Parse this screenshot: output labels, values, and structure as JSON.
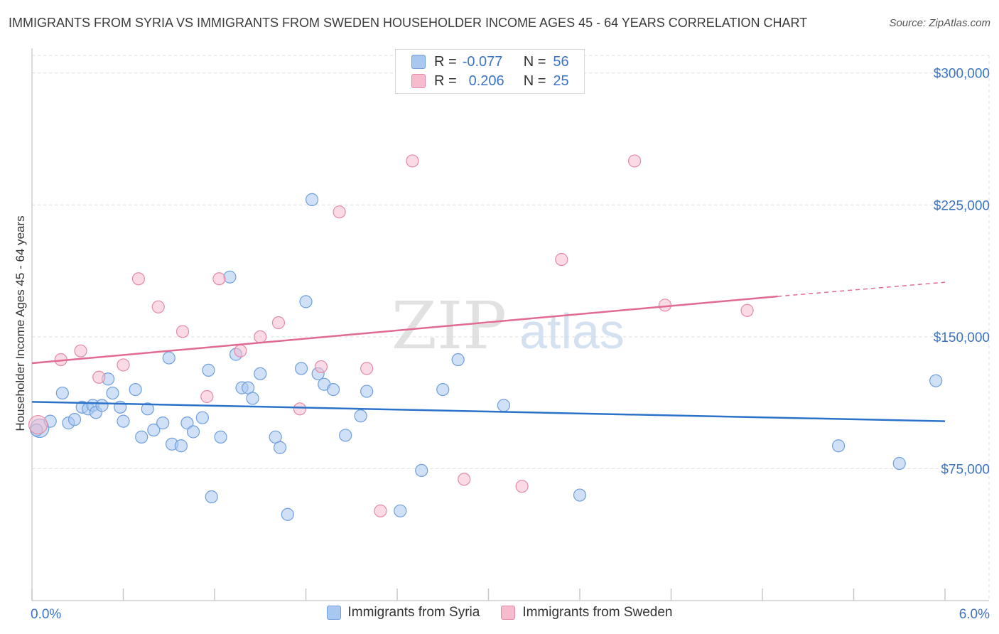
{
  "title": "IMMIGRANTS FROM SYRIA VS IMMIGRANTS FROM SWEDEN HOUSEHOLDER INCOME AGES 45 - 64 YEARS CORRELATION CHART",
  "source": "Source: ZipAtlas.com",
  "watermark": {
    "zip": "ZIP",
    "atlas": "atlas"
  },
  "legend": {
    "rows": [
      {
        "r_label": "R =",
        "r_value": "-0.077",
        "n_label": "N =",
        "n_value": "56"
      },
      {
        "r_label": "R =",
        "r_value": "0.206",
        "n_label": "N =",
        "n_value": "25"
      }
    ]
  },
  "colors": {
    "syria_fill": "#a9c8f0",
    "syria_stroke": "#6f9fdc",
    "syria_line": "#2b72c9",
    "sweden_fill": "#f6bccd",
    "sweden_stroke": "#e48aa6",
    "sweden_line": "#e06a92",
    "tick_label": "#3b74c4",
    "grid": "#dddddd"
  },
  "chart_data": {
    "type": "scatter",
    "title": "IMMIGRANTS FROM SYRIA VS IMMIGRANTS FROM SWEDEN HOUSEHOLDER INCOME AGES 45 - 64 YEARS CORRELATION CHART",
    "xlabel": "",
    "ylabel": "Householder Income Ages 45 - 64 years",
    "xlim": [
      0,
      6
    ],
    "ylim": [
      0,
      310000
    ],
    "x_tick_labels": [
      "0.0%",
      "6.0%"
    ],
    "y_ticks": [
      75000,
      150000,
      225000,
      300000
    ],
    "y_tick_labels": [
      "$75,000",
      "$150,000",
      "$225,000",
      "$300,000"
    ],
    "series": [
      {
        "name": "Immigrants from Syria",
        "r": -0.077,
        "n": 56,
        "trend": {
          "x0": 0,
          "y0": 113000,
          "x1": 6,
          "y1": 102000
        },
        "points": [
          [
            0.05,
            98000,
            2
          ],
          [
            0.12,
            102000,
            1
          ],
          [
            0.2,
            118000,
            1
          ],
          [
            0.24,
            101000,
            1
          ],
          [
            0.28,
            103000,
            1
          ],
          [
            0.33,
            110000,
            1
          ],
          [
            0.37,
            109000,
            1
          ],
          [
            0.4,
            111000,
            1
          ],
          [
            0.42,
            107000,
            1
          ],
          [
            0.46,
            111000,
            1
          ],
          [
            0.5,
            126000,
            1
          ],
          [
            0.53,
            118000,
            1
          ],
          [
            0.58,
            110000,
            1
          ],
          [
            0.6,
            102000,
            1
          ],
          [
            0.68,
            120000,
            1
          ],
          [
            0.72,
            93000,
            1
          ],
          [
            0.76,
            109000,
            1
          ],
          [
            0.8,
            97000,
            1
          ],
          [
            0.86,
            101000,
            1
          ],
          [
            0.9,
            138000,
            1
          ],
          [
            0.92,
            89000,
            1
          ],
          [
            0.98,
            88000,
            1
          ],
          [
            1.02,
            101000,
            1
          ],
          [
            1.06,
            96000,
            1
          ],
          [
            1.12,
            104000,
            1
          ],
          [
            1.16,
            131000,
            1
          ],
          [
            1.18,
            59000,
            1
          ],
          [
            1.24,
            93000,
            1
          ],
          [
            1.3,
            184000,
            1
          ],
          [
            1.34,
            140000,
            1
          ],
          [
            1.38,
            121000,
            1
          ],
          [
            1.42,
            121000,
            1
          ],
          [
            1.45,
            115000,
            1
          ],
          [
            1.5,
            129000,
            1
          ],
          [
            1.6,
            93000,
            1
          ],
          [
            1.63,
            87000,
            1
          ],
          [
            1.68,
            49000,
            1
          ],
          [
            1.77,
            132000,
            1
          ],
          [
            1.8,
            170000,
            1
          ],
          [
            1.84,
            228000,
            1
          ],
          [
            1.88,
            129000,
            1
          ],
          [
            1.92,
            123000,
            1
          ],
          [
            1.98,
            120000,
            1
          ],
          [
            2.06,
            94000,
            1
          ],
          [
            2.16,
            105000,
            1
          ],
          [
            2.2,
            119000,
            1
          ],
          [
            2.42,
            51000,
            1
          ],
          [
            2.56,
            74000,
            1
          ],
          [
            2.7,
            120000,
            1
          ],
          [
            2.8,
            137000,
            1
          ],
          [
            3.1,
            111000,
            1
          ],
          [
            3.6,
            60000,
            1
          ],
          [
            5.3,
            88000,
            1
          ],
          [
            5.7,
            78000,
            1
          ],
          [
            5.94,
            125000,
            1
          ],
          [
            0.03,
            97000,
            1
          ]
        ]
      },
      {
        "name": "Immigrants from Sweden",
        "r": 0.206,
        "n": 25,
        "trend": {
          "x0": 0,
          "y0": 135000,
          "x1": 4.9,
          "y1": 173000,
          "dash_to_x": 6,
          "dash_to_y": 181000
        },
        "points": [
          [
            0.04,
            100000,
            2
          ],
          [
            0.19,
            137000,
            1
          ],
          [
            0.32,
            142000,
            1
          ],
          [
            0.44,
            127000,
            1
          ],
          [
            0.6,
            134000,
            1
          ],
          [
            0.7,
            183000,
            1
          ],
          [
            0.83,
            167000,
            1
          ],
          [
            0.99,
            153000,
            1
          ],
          [
            1.15,
            116000,
            1
          ],
          [
            1.23,
            183000,
            1
          ],
          [
            1.37,
            142000,
            1
          ],
          [
            1.5,
            150000,
            1
          ],
          [
            1.62,
            158000,
            1
          ],
          [
            1.76,
            109000,
            1
          ],
          [
            1.9,
            133000,
            1
          ],
          [
            2.02,
            221000,
            1
          ],
          [
            2.2,
            132000,
            1
          ],
          [
            2.29,
            51000,
            1
          ],
          [
            2.5,
            250000,
            1
          ],
          [
            2.84,
            69000,
            1
          ],
          [
            3.22,
            65000,
            1
          ],
          [
            3.48,
            194000,
            1
          ],
          [
            3.96,
            250000,
            1
          ],
          [
            4.16,
            168000,
            1
          ],
          [
            4.7,
            165000,
            1
          ]
        ]
      }
    ]
  }
}
